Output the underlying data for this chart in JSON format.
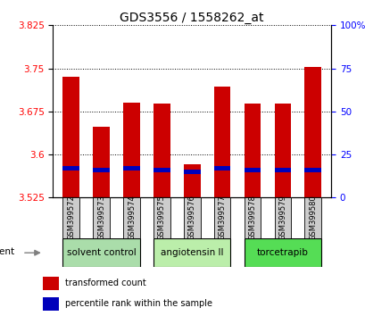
{
  "title": "GDS3556 / 1558262_at",
  "samples": [
    "GSM399572",
    "GSM399573",
    "GSM399574",
    "GSM399575",
    "GSM399576",
    "GSM399577",
    "GSM399578",
    "GSM399579",
    "GSM399580"
  ],
  "transformed_counts": [
    3.735,
    3.648,
    3.69,
    3.688,
    3.583,
    3.718,
    3.688,
    3.688,
    3.752
  ],
  "percentile_ranks_pct": [
    17,
    16,
    17,
    16,
    15,
    17,
    16,
    16,
    16
  ],
  "ymin": 3.525,
  "ymax": 3.825,
  "yticks": [
    3.525,
    3.6,
    3.675,
    3.75,
    3.825
  ],
  "ytick_labels": [
    "3.525",
    "3.6",
    "3.675",
    "3.75",
    "3.825"
  ],
  "right_yticks_pct": [
    0,
    25,
    50,
    75,
    100
  ],
  "right_ytick_labels": [
    "0",
    "25",
    "50",
    "75",
    "100%"
  ],
  "groups": [
    {
      "label": "solvent control",
      "indices": [
        0,
        1,
        2
      ],
      "color": "#aaddaa"
    },
    {
      "label": "angiotensin II",
      "indices": [
        3,
        4,
        5
      ],
      "color": "#bbeeaa"
    },
    {
      "label": "torcetrapib",
      "indices": [
        6,
        7,
        8
      ],
      "color": "#55dd55"
    }
  ],
  "bar_color": "#cc0000",
  "blue_color": "#0000bb",
  "bar_width": 0.55,
  "legend_items": [
    {
      "label": "transformed count",
      "color": "#cc0000"
    },
    {
      "label": "percentile rank within the sample",
      "color": "#0000bb"
    }
  ]
}
